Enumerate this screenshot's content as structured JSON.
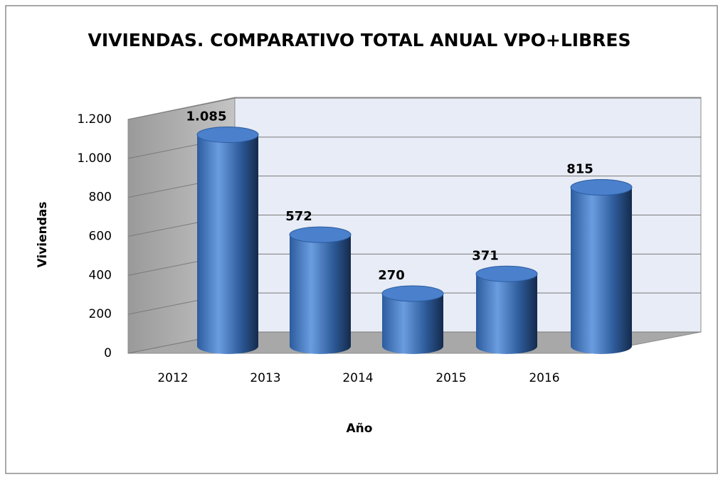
{
  "chart_data": {
    "type": "bar",
    "title": "VIVIENDAS. COMPARATIVO TOTAL ANUAL VPO+LIBRES",
    "x_label": "Año",
    "y_label": "Viviendas",
    "categories": [
      "2012",
      "2013",
      "2014",
      "2015",
      "2016"
    ],
    "values": [
      1085,
      572,
      270,
      371,
      815
    ],
    "value_labels": [
      "1.085",
      "572",
      "270",
      "371",
      "815"
    ],
    "color": "#4a80cc",
    "ylim": [
      0,
      1200
    ],
    "yticks": [
      0,
      200,
      400,
      600,
      800,
      {
        "value": 1000,
        "label": "1.000"
      },
      {
        "value": 1200,
        "label": "1.200"
      }
    ],
    "grid": true
  }
}
